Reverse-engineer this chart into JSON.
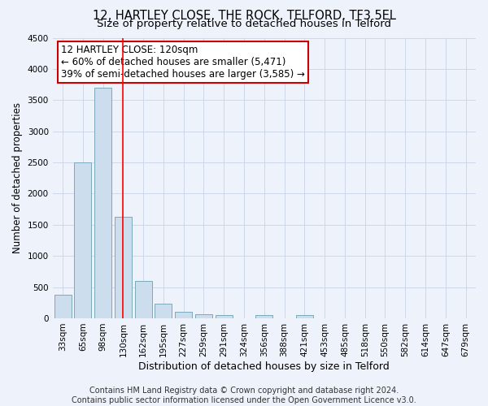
{
  "title": "12, HARTLEY CLOSE, THE ROCK, TELFORD, TF3 5EL",
  "subtitle": "Size of property relative to detached houses in Telford",
  "xlabel": "Distribution of detached houses by size in Telford",
  "ylabel": "Number of detached properties",
  "categories": [
    "33sqm",
    "65sqm",
    "98sqm",
    "130sqm",
    "162sqm",
    "195sqm",
    "227sqm",
    "259sqm",
    "291sqm",
    "324sqm",
    "356sqm",
    "388sqm",
    "421sqm",
    "453sqm",
    "485sqm",
    "518sqm",
    "550sqm",
    "582sqm",
    "614sqm",
    "647sqm",
    "679sqm"
  ],
  "values": [
    380,
    2500,
    3700,
    1625,
    600,
    240,
    110,
    60,
    50,
    0,
    50,
    0,
    55,
    0,
    0,
    0,
    0,
    0,
    0,
    0,
    0
  ],
  "bar_color": "#ccdded",
  "bar_edge_color": "#7aaabb",
  "bar_edge_width": 0.7,
  "red_line_index": 3,
  "ylim": [
    0,
    4500
  ],
  "yticks": [
    0,
    500,
    1000,
    1500,
    2000,
    2500,
    3000,
    3500,
    4000,
    4500
  ],
  "grid_color": "#c8d4e8",
  "background_color": "#eef2fa",
  "annotation_title": "12 HARTLEY CLOSE: 120sqm",
  "annotation_line1": "← 60% of detached houses are smaller (5,471)",
  "annotation_line2": "39% of semi-detached houses are larger (3,585) →",
  "annotation_box_color": "#ffffff",
  "annotation_box_edge": "#cc0000",
  "footer_line1": "Contains HM Land Registry data © Crown copyright and database right 2024.",
  "footer_line2": "Contains public sector information licensed under the Open Government Licence v3.0.",
  "title_fontsize": 10.5,
  "subtitle_fontsize": 9.5,
  "xlabel_fontsize": 9,
  "ylabel_fontsize": 8.5,
  "tick_fontsize": 7.5,
  "annotation_fontsize": 8.5,
  "footer_fontsize": 7
}
